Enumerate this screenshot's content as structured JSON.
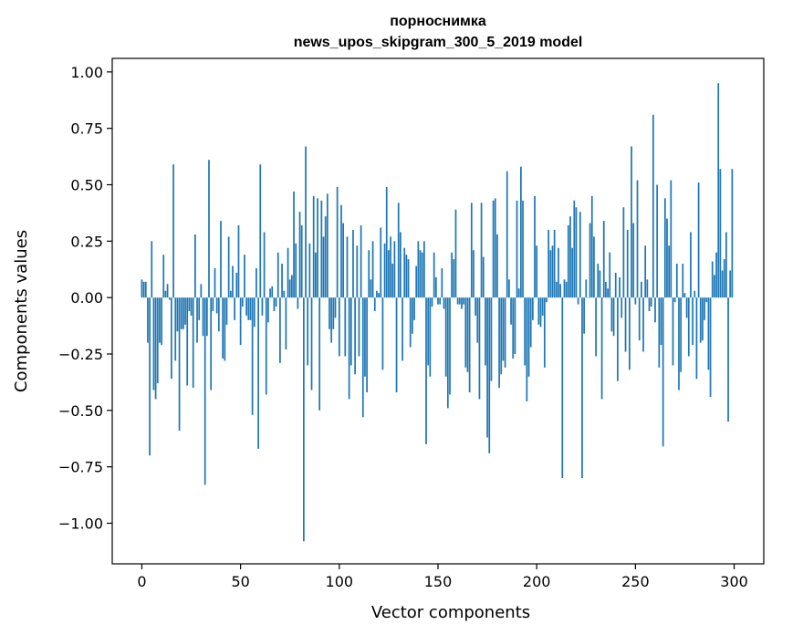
{
  "chart_data": {
    "type": "bar",
    "title_line1": "порноснимка",
    "title_line2": "news_upos_skipgram_300_5_2019 model",
    "xlabel": "Vector components",
    "ylabel": "Components values",
    "xlim": [
      -15,
      315
    ],
    "ylim": [
      -1.18,
      1.06
    ],
    "xticks": [
      {
        "value": 0,
        "label": "0"
      },
      {
        "value": 50,
        "label": "50"
      },
      {
        "value": 100,
        "label": "100"
      },
      {
        "value": 150,
        "label": "150"
      },
      {
        "value": 200,
        "label": "200"
      },
      {
        "value": 250,
        "label": "250"
      },
      {
        "value": 300,
        "label": "300"
      }
    ],
    "yticks": [
      {
        "value": 1.0,
        "label": "1.00"
      },
      {
        "value": 0.75,
        "label": "0.75"
      },
      {
        "value": 0.5,
        "label": "0.50"
      },
      {
        "value": 0.25,
        "label": "0.25"
      },
      {
        "value": 0.0,
        "label": "0.00"
      },
      {
        "value": -0.25,
        "label": "−0.25"
      },
      {
        "value": -0.5,
        "label": "−0.50"
      },
      {
        "value": -0.75,
        "label": "−0.75"
      },
      {
        "value": -1.0,
        "label": "−1.00"
      }
    ],
    "bar_color": "#1f77b4",
    "values": [
      0.08,
      0.07,
      0.07,
      -0.2,
      -0.7,
      0.25,
      -0.41,
      -0.45,
      -0.38,
      -0.2,
      -0.21,
      0.19,
      0.03,
      0.06,
      -0.01,
      -0.36,
      0.59,
      -0.28,
      -0.15,
      -0.59,
      -0.14,
      -0.14,
      -0.12,
      -0.39,
      -0.06,
      -0.08,
      -0.4,
      0.28,
      -0.2,
      -0.1,
      0.06,
      -0.17,
      -0.83,
      -0.17,
      0.61,
      -0.41,
      -0.06,
      0.13,
      -0.07,
      -0.15,
      0.34,
      -0.27,
      -0.28,
      -0.12,
      0.27,
      0.03,
      0.14,
      -0.1,
      0.11,
      0.32,
      -0.21,
      -0.04,
      0.19,
      -0.08,
      -0.1,
      -0.1,
      -0.52,
      -0.13,
      0.13,
      -0.67,
      0.59,
      -0.08,
      0.29,
      -0.43,
      -0.11,
      0.04,
      0.05,
      -0.06,
      -0.04,
      0.2,
      -0.29,
      0.15,
      0.03,
      -0.23,
      0.22,
      0.08,
      0.1,
      0.47,
      0.24,
      -0.05,
      0.38,
      0.32,
      -1.08,
      0.67,
      -0.3,
      0.24,
      -0.41,
      0.45,
      0.2,
      0.44,
      -0.5,
      0.43,
      0.27,
      0.36,
      0.46,
      -0.14,
      -0.2,
      -0.14,
      -0.09,
      0.49,
      -0.26,
      0.41,
      0.33,
      -0.26,
      0.27,
      -0.45,
      -0.3,
      0.3,
      -0.34,
      0.23,
      -0.26,
      0.32,
      -0.53,
      -0.35,
      -0.42,
      0.21,
      0.08,
      0.25,
      -0.06,
      0.03,
      0.02,
      0.31,
      -0.32,
      0.24,
      0.49,
      0.21,
      0.27,
      0.15,
      0.25,
      -0.42,
      0.42,
      0.29,
      -0.28,
      0.22,
      0.19,
      0.17,
      -0.22,
      -0.16,
      -0.1,
      0.14,
      0.25,
      0.21,
      0.2,
      0.25,
      -0.65,
      -0.3,
      -0.35,
      -0.04,
      0.2,
      0.09,
      -0.03,
      -0.03,
      0.13,
      -0.05,
      -0.35,
      -0.49,
      -0.43,
      0.2,
      0.17,
      0.39,
      -0.03,
      -0.03,
      -0.05,
      -0.03,
      -0.31,
      -0.33,
      -0.42,
      0.42,
      0.21,
      -0.08,
      -0.2,
      -0.45,
      0.42,
      0.18,
      -0.3,
      -0.62,
      -0.69,
      -0.37,
      0.43,
      0.44,
      0.28,
      -0.4,
      -0.34,
      -0.28,
      -0.31,
      0.56,
      0.08,
      -0.12,
      -0.27,
      -0.25,
      0.43,
      0.04,
      0.58,
      0.43,
      -0.3,
      -0.46,
      -0.35,
      -0.22,
      -0.1,
      0.45,
      0.23,
      -0.12,
      -0.13,
      -0.08,
      -0.31,
      -0.02,
      0.3,
      0.21,
      0.23,
      0.3,
      0.07,
      0.22,
      0.06,
      -0.8,
      0.08,
      0.07,
      0.32,
      0.36,
      0.22,
      0.43,
      0.4,
      -0.03,
      0.38,
      -0.8,
      -0.16,
      0.08,
      0.0,
      0.33,
      0.45,
      0.27,
      -0.26,
      0.15,
      0.12,
      -0.45,
      0.34,
      0.07,
      0.04,
      0.2,
      -0.15,
      -0.17,
      0.11,
      -0.37,
      0.09,
      -0.09,
      0.4,
      -0.24,
      0.3,
      -0.32,
      0.67,
      0.33,
      -0.03,
      0.52,
      -0.19,
      0.07,
      -0.24,
      0.23,
      0.08,
      -0.06,
      -0.04,
      0.81,
      -0.11,
      0.5,
      -0.31,
      -0.21,
      -0.66,
      0.44,
      0.35,
      0.23,
      0.52,
      -0.3,
      -0.02,
      0.15,
      -0.41,
      -0.33,
      0.15,
      0.02,
      -0.09,
      -0.26,
      0.29,
      -0.21,
      0.03,
      -0.36,
      0.51,
      -0.2,
      -0.19,
      -0.1,
      -0.02,
      -0.32,
      -0.44,
      0.16,
      0.1,
      0.2,
      0.95,
      0.57,
      0.12,
      0.17,
      0.29,
      -0.55,
      0.12,
      0.57
    ]
  }
}
